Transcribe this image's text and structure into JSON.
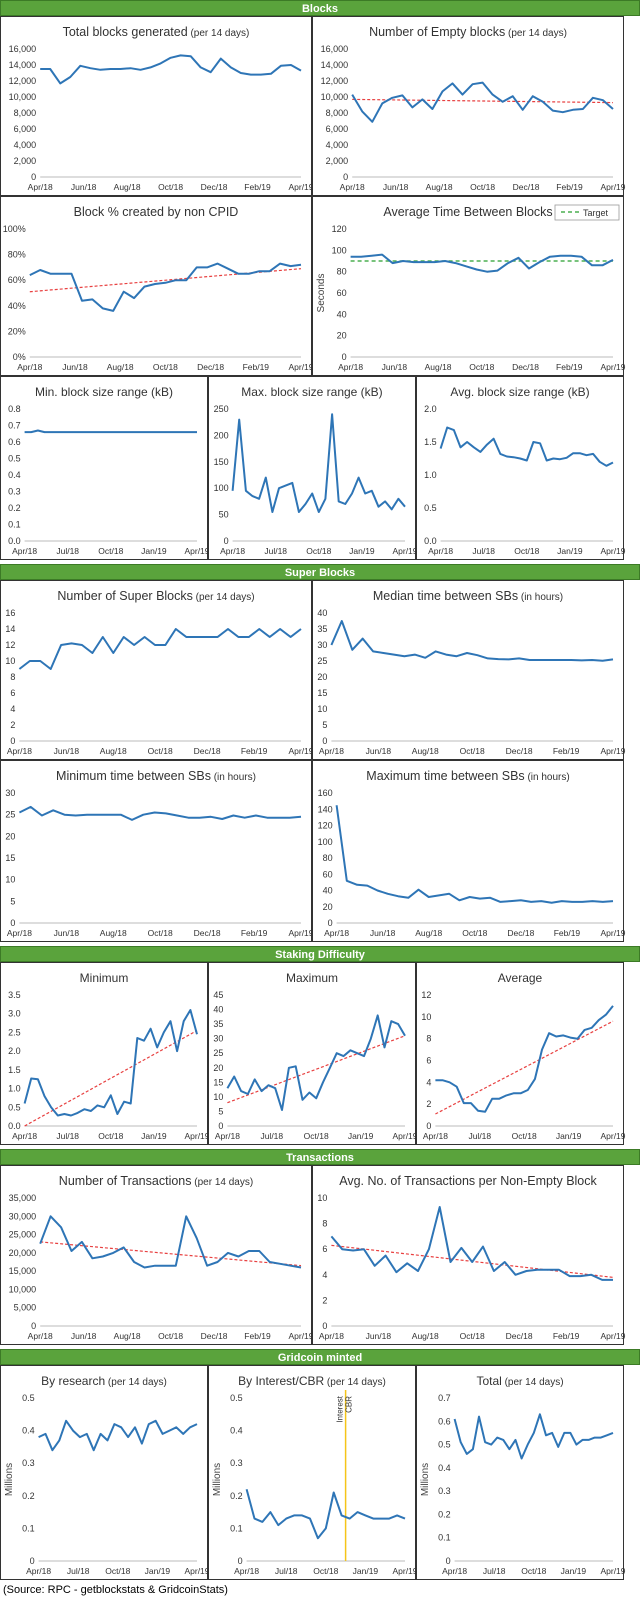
{
  "sections": {
    "blocks": "Blocks",
    "super_blocks": "Super Blocks",
    "staking": "Staking Difficulty",
    "transactions": "Transactions",
    "minted": "Gridcoin minted"
  },
  "source": "(Source: RPC - getblockstats & GridcoinStats)",
  "colors": {
    "line": "#2e75b6",
    "trend": "#e84040",
    "target": "#4caf50",
    "marker": "#f5c518",
    "section": "#5aa33c"
  },
  "chart_data": [
    {
      "id": "total-blocks",
      "type": "line",
      "title": "Total blocks generated",
      "subtitle": "(per 14 days)",
      "ylim": [
        0,
        16000
      ],
      "yticks": [
        "0",
        "2,000",
        "4,000",
        "6,000",
        "8,000",
        "10,000",
        "12,000",
        "14,000",
        "16,000"
      ],
      "xticks": [
        "Apr/18",
        "Jun/18",
        "Aug/18",
        "Oct/18",
        "Dec/18",
        "Feb/19",
        "Apr/19"
      ],
      "values": [
        13500,
        13500,
        11700,
        12500,
        13900,
        13600,
        13400,
        13500,
        13500,
        13600,
        13400,
        13700,
        14200,
        14900,
        15200,
        15100,
        13700,
        13100,
        14800,
        13700,
        13000,
        12800,
        12800,
        12900,
        13900,
        14000,
        13300
      ]
    },
    {
      "id": "empty-blocks",
      "type": "line",
      "title": "Number of Empty blocks",
      "subtitle": "(per 14 days)",
      "ylim": [
        0,
        16000
      ],
      "yticks": [
        "0",
        "2,000",
        "4,000",
        "6,000",
        "8,000",
        "10,000",
        "12,000",
        "14,000",
        "16,000"
      ],
      "xticks": [
        "Apr/18",
        "Jun/18",
        "Aug/18",
        "Oct/18",
        "Dec/18",
        "Feb/19",
        "Apr/19"
      ],
      "values": [
        10300,
        8200,
        6900,
        9200,
        9900,
        10200,
        8700,
        9700,
        8500,
        10700,
        11700,
        10300,
        11600,
        11800,
        10300,
        9400,
        10100,
        8400,
        10100,
        9400,
        8300,
        8100,
        8400,
        8500,
        9900,
        9600,
        8500
      ],
      "trend": [
        9700,
        9300
      ]
    },
    {
      "id": "non-cpid",
      "type": "line",
      "title": "Block % created by non CPID",
      "subtitle": "",
      "ylim": [
        0,
        100
      ],
      "yticks": [
        "0%",
        "20%",
        "40%",
        "60%",
        "80%",
        "100%"
      ],
      "xticks": [
        "Apr/18",
        "Jun/18",
        "Aug/18",
        "Oct/18",
        "Dec/18",
        "Feb/19",
        "Apr/19"
      ],
      "values": [
        64,
        68,
        65,
        65,
        65,
        44,
        45,
        38,
        36,
        51,
        46,
        55,
        57,
        58,
        60,
        60,
        70,
        70,
        73,
        69,
        65,
        65,
        67,
        67,
        73,
        71,
        72
      ],
      "trend": [
        51,
        69
      ]
    },
    {
      "id": "avg-time",
      "type": "line",
      "title": "Average Time Between Blocks",
      "subtitle": "",
      "ylabel": "Seconds",
      "legend": "Target",
      "ylim": [
        0,
        120
      ],
      "yticks": [
        "0",
        "20",
        "40",
        "60",
        "80",
        "100",
        "120"
      ],
      "xticks": [
        "Apr/18",
        "Jun/18",
        "Aug/18",
        "Oct/18",
        "Dec/18",
        "Feb/19",
        "Apr/19"
      ],
      "values": [
        94,
        94,
        95,
        96,
        88,
        90,
        89,
        89,
        89,
        90,
        88,
        85,
        82,
        80,
        81,
        88,
        93,
        83,
        89,
        94,
        95,
        95,
        94,
        86,
        86,
        91
      ],
      "target": 90
    },
    {
      "id": "min-block-size",
      "type": "line",
      "title": "Min. block size range (kB)",
      "subtitle": "",
      "ylim": [
        0,
        0.8
      ],
      "yticks": [
        "0.0",
        "0.1",
        "0.2",
        "0.3",
        "0.4",
        "0.5",
        "0.6",
        "0.7",
        "0.8"
      ],
      "xticks": [
        "Apr/18",
        "Jul/18",
        "Oct/18",
        "Jan/19",
        "Apr/19"
      ],
      "values": [
        0.66,
        0.66,
        0.67,
        0.66,
        0.66,
        0.66,
        0.66,
        0.66,
        0.66,
        0.66,
        0.66,
        0.66,
        0.66,
        0.66,
        0.66,
        0.66,
        0.66,
        0.66,
        0.66,
        0.66,
        0.66,
        0.66,
        0.66,
        0.66,
        0.66,
        0.66,
        0.66
      ]
    },
    {
      "id": "max-block-size",
      "type": "line",
      "title": "Max. block size range (kB)",
      "subtitle": "",
      "ylim": [
        0,
        250
      ],
      "yticks": [
        "0",
        "50",
        "100",
        "150",
        "200",
        "250"
      ],
      "xticks": [
        "Apr/18",
        "Jul/18",
        "Oct/18",
        "Jan/19",
        "Apr/19"
      ],
      "values": [
        95,
        230,
        95,
        85,
        80,
        120,
        55,
        100,
        105,
        110,
        55,
        70,
        90,
        55,
        80,
        240,
        75,
        70,
        90,
        120,
        90,
        95,
        65,
        75,
        60,
        80,
        65
      ]
    },
    {
      "id": "avg-block-size",
      "type": "line",
      "title": "Avg. block size range (kB)",
      "subtitle": "",
      "ylim": [
        0,
        2.0
      ],
      "yticks": [
        "0.0",
        "0.5",
        "1.0",
        "1.5",
        "2.0"
      ],
      "xticks": [
        "Apr/18",
        "Jul/18",
        "Oct/18",
        "Jan/19",
        "Apr/19"
      ],
      "values": [
        1.4,
        1.72,
        1.68,
        1.42,
        1.5,
        1.42,
        1.35,
        1.46,
        1.55,
        1.32,
        1.28,
        1.27,
        1.25,
        1.22,
        1.5,
        1.48,
        1.22,
        1.25,
        1.24,
        1.26,
        1.33,
        1.33,
        1.3,
        1.32,
        1.2,
        1.14,
        1.19
      ]
    },
    {
      "id": "num-super-blocks",
      "type": "line",
      "title": "Number of Super Blocks",
      "subtitle": "(per 14 days)",
      "ylim": [
        0,
        16
      ],
      "yticks": [
        "0",
        "2",
        "4",
        "6",
        "8",
        "10",
        "12",
        "14",
        "16"
      ],
      "xticks": [
        "Apr/18",
        "Jun/18",
        "Aug/18",
        "Oct/18",
        "Dec/18",
        "Feb/19",
        "Apr/19"
      ],
      "values": [
        9,
        10,
        10,
        9,
        12,
        12.2,
        12,
        11,
        13,
        11,
        13,
        12,
        13,
        12,
        12,
        14,
        13,
        13,
        13,
        13,
        14,
        13,
        13,
        14,
        13,
        14,
        13,
        14
      ]
    },
    {
      "id": "median-time-sb",
      "type": "line",
      "title": "Median time between SBs",
      "subtitle": "(in hours)",
      "ylim": [
        0,
        40
      ],
      "yticks": [
        "0",
        "5",
        "10",
        "15",
        "20",
        "25",
        "30",
        "35",
        "40"
      ],
      "xticks": [
        "Apr/18",
        "Jun/18",
        "Aug/18",
        "Oct/18",
        "Dec/18",
        "Feb/19",
        "Apr/19"
      ],
      "values": [
        30,
        37.5,
        28.5,
        32,
        28,
        27.5,
        27,
        26.5,
        27,
        26,
        28,
        27,
        26.5,
        27.5,
        26.8,
        25.8,
        25.6,
        25.5,
        25.8,
        25.3,
        25.3,
        25.3,
        25.3,
        25.3,
        25.2,
        25.3,
        25.1,
        25.5
      ]
    },
    {
      "id": "min-time-sb",
      "type": "line",
      "title": "Minimum time between SBs",
      "subtitle": "(in hours)",
      "ylim": [
        0,
        30
      ],
      "yticks": [
        "0",
        "5",
        "10",
        "15",
        "20",
        "25",
        "30"
      ],
      "xticks": [
        "Apr/18",
        "Jun/18",
        "Aug/18",
        "Oct/18",
        "Dec/18",
        "Feb/19",
        "Apr/19"
      ],
      "values": [
        25.5,
        26.8,
        24.8,
        26,
        25,
        24.8,
        25,
        25,
        25,
        25,
        23.8,
        25,
        25.5,
        25.3,
        24.8,
        24.3,
        24.3,
        24.5,
        24,
        24.8,
        24.3,
        24.8,
        24.3,
        24.3,
        24.3,
        24.5
      ]
    },
    {
      "id": "max-time-sb",
      "type": "line",
      "title": "Maximum time  between SBs",
      "subtitle": "(in hours)",
      "ylim": [
        0,
        160
      ],
      "yticks": [
        "0",
        "20",
        "40",
        "60",
        "80",
        "100",
        "120",
        "140",
        "160"
      ],
      "xticks": [
        "Apr/18",
        "Jun/18",
        "Aug/18",
        "Oct/18",
        "Dec/18",
        "Feb/19",
        "Apr/19"
      ],
      "values": [
        145,
        52,
        47,
        46,
        40,
        36,
        33,
        31,
        41,
        32,
        34,
        36,
        28,
        32,
        30,
        31,
        26,
        27,
        28,
        26,
        27,
        25,
        27,
        26,
        26,
        27,
        26,
        27
      ]
    },
    {
      "id": "stake-min",
      "type": "line",
      "title": "Minimum",
      "subtitle": "",
      "ylim": [
        0,
        3.5
      ],
      "yticks": [
        "0.0",
        "0.5",
        "1.0",
        "1.5",
        "2.0",
        "2.5",
        "3.0",
        "3.5"
      ],
      "xticks": [
        "Apr/18",
        "Jul/18",
        "Oct/18",
        "Jan/19",
        "Apr/19"
      ],
      "values": [
        0.6,
        1.27,
        1.25,
        0.8,
        0.5,
        0.28,
        0.32,
        0.28,
        0.35,
        0.45,
        0.4,
        0.55,
        0.5,
        0.82,
        0.32,
        0.65,
        0.6,
        2.35,
        2.28,
        2.6,
        2.1,
        2.5,
        2.8,
        2.0,
        2.8,
        3.1,
        2.45
      ],
      "trend": [
        0.0,
        2.55
      ]
    },
    {
      "id": "stake-max",
      "type": "line",
      "title": "Maximum",
      "subtitle": "",
      "ylim": [
        0,
        45
      ],
      "yticks": [
        "0",
        "5",
        "10",
        "15",
        "20",
        "25",
        "30",
        "35",
        "40",
        "45"
      ],
      "xticks": [
        "Apr/18",
        "Jul/18",
        "Oct/18",
        "Jan/19",
        "Apr/19"
      ],
      "values": [
        13,
        17,
        12,
        11,
        16,
        12,
        14,
        13,
        5.5,
        20,
        20.5,
        9,
        11.5,
        9.5,
        15,
        20,
        25,
        24,
        26,
        25,
        24,
        30,
        38,
        27,
        36,
        35,
        31
      ],
      "trend": [
        8,
        31
      ]
    },
    {
      "id": "stake-avg",
      "type": "line",
      "title": "Average",
      "subtitle": "",
      "ylim": [
        0,
        12
      ],
      "yticks": [
        "0",
        "2",
        "4",
        "6",
        "8",
        "10",
        "12"
      ],
      "xticks": [
        "Apr/18",
        "Jul/18",
        "Oct/18",
        "Jan/19",
        "Apr/19"
      ],
      "values": [
        4.2,
        4.2,
        4.0,
        3.6,
        2.1,
        2.1,
        1.4,
        1.3,
        2.5,
        2.5,
        2.8,
        3.0,
        3.0,
        3.3,
        4.3,
        7.0,
        8.5,
        8.2,
        8.3,
        8.1,
        8.0,
        8.8,
        9.0,
        9.7,
        10.2,
        11.0
      ],
      "trend": [
        1.1,
        9.6
      ]
    },
    {
      "id": "num-tx",
      "type": "line",
      "title": "Number of Transactions",
      "subtitle": "(per 14 days)",
      "ylim": [
        0,
        35000
      ],
      "yticks": [
        "0",
        "5,000",
        "10,000",
        "15,000",
        "20,000",
        "25,000",
        "30,000",
        "35,000"
      ],
      "xticks": [
        "Apr/18",
        "Jun/18",
        "Aug/18",
        "Oct/18",
        "Dec/18",
        "Feb/19",
        "Apr/19"
      ],
      "values": [
        22500,
        30000,
        27000,
        20500,
        23000,
        18500,
        19000,
        20000,
        21500,
        17500,
        16000,
        16500,
        16500,
        16500,
        30000,
        24000,
        16500,
        17500,
        20000,
        19000,
        20500,
        20500,
        17500,
        17000,
        16500,
        16000
      ],
      "trend": [
        23000,
        16500
      ]
    },
    {
      "id": "avg-tx-block",
      "type": "line",
      "title": "Avg. No. of Transactions per Non-Empty Block",
      "subtitle": "",
      "ylim": [
        0,
        10
      ],
      "yticks": [
        "0",
        "2",
        "4",
        "6",
        "8",
        "10"
      ],
      "xticks": [
        "Apr/18",
        "Jun/18",
        "Aug/18",
        "Oct/18",
        "Dec/18",
        "Feb/19",
        "Apr/19"
      ],
      "values": [
        7.0,
        6.0,
        5.9,
        6.0,
        4.7,
        5.5,
        4.2,
        4.9,
        4.3,
        6.0,
        9.3,
        5.0,
        6.1,
        5.0,
        6.2,
        4.3,
        5.0,
        4.0,
        4.3,
        4.4,
        4.4,
        4.4,
        3.9,
        3.9,
        4.0,
        3.6,
        3.6
      ],
      "trend": [
        6.3,
        3.8
      ]
    },
    {
      "id": "minted-research",
      "type": "line",
      "title": "By research",
      "subtitle": "(per 14 days)",
      "ylabel": "Millions",
      "ylim": [
        0,
        0.5
      ],
      "yticks": [
        "0",
        "0.1",
        "0.2",
        "0.3",
        "0.4",
        "0.5"
      ],
      "xticks": [
        "Apr/18",
        "Jul/18",
        "Oct/18",
        "Jan/19",
        "Apr/19"
      ],
      "values": [
        0.38,
        0.39,
        0.34,
        0.37,
        0.43,
        0.4,
        0.38,
        0.39,
        0.34,
        0.39,
        0.37,
        0.42,
        0.41,
        0.38,
        0.41,
        0.36,
        0.42,
        0.43,
        0.39,
        0.4,
        0.41,
        0.39,
        0.41,
        0.42
      ]
    },
    {
      "id": "minted-interest",
      "type": "line",
      "title": "By Interest/CBR",
      "subtitle": "(per 14 days)",
      "ylabel": "Millions",
      "marker_labels": [
        "Interest",
        "CBR"
      ],
      "ylim": [
        0,
        0.5
      ],
      "yticks": [
        "0",
        "0.1",
        "0.2",
        "0.3",
        "0.4",
        "0.5"
      ],
      "xticks": [
        "Apr/18",
        "Jul/18",
        "Oct/18",
        "Jan/19",
        "Apr/19"
      ],
      "values": [
        0.22,
        0.13,
        0.12,
        0.15,
        0.11,
        0.13,
        0.14,
        0.14,
        0.13,
        0.07,
        0.1,
        0.21,
        0.14,
        0.13,
        0.15,
        0.14,
        0.13,
        0.13,
        0.13,
        0.14,
        0.13
      ],
      "marker_index": 12.5
    },
    {
      "id": "minted-total",
      "type": "line",
      "title": "Total",
      "subtitle": "(per 14 days)",
      "ylabel": "Millions",
      "ylim": [
        0,
        0.7
      ],
      "yticks": [
        "0",
        "0.1",
        "0.2",
        "0.3",
        "0.4",
        "0.5",
        "0.6",
        "0.7"
      ],
      "xticks": [
        "Apr/18",
        "Jul/18",
        "Oct/18",
        "Jan/19",
        "Apr/19"
      ],
      "values": [
        0.61,
        0.51,
        0.46,
        0.48,
        0.62,
        0.51,
        0.5,
        0.53,
        0.52,
        0.48,
        0.52,
        0.44,
        0.5,
        0.55,
        0.63,
        0.54,
        0.55,
        0.49,
        0.55,
        0.55,
        0.5,
        0.52,
        0.52,
        0.53,
        0.53,
        0.54,
        0.55
      ]
    }
  ]
}
